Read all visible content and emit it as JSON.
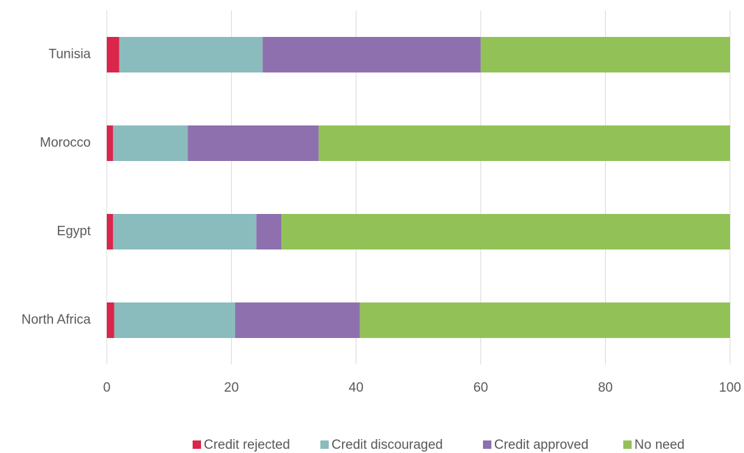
{
  "chart_data": {
    "type": "stacked_barh",
    "categories": [
      "Tunisia",
      "Morocco",
      "Egypt",
      "North Africa"
    ],
    "series": [
      {
        "name": "Credit rejected",
        "color": "#d9264a",
        "values": [
          2,
          1,
          1,
          1.2
        ]
      },
      {
        "name": "Credit discouraged",
        "color": "#8abbbd",
        "values": [
          23,
          12,
          23,
          19.4
        ]
      },
      {
        "name": "Credit approved",
        "color": "#8e70ae",
        "values": [
          35,
          21,
          4,
          20
        ]
      },
      {
        "name": "No need",
        "color": "#92c257",
        "values": [
          40,
          66,
          72,
          59.4
        ]
      }
    ],
    "xlim": [
      0,
      100
    ],
    "xticks": [
      0,
      20,
      40,
      60,
      80,
      100
    ],
    "grid": true,
    "legend": "bottom"
  }
}
